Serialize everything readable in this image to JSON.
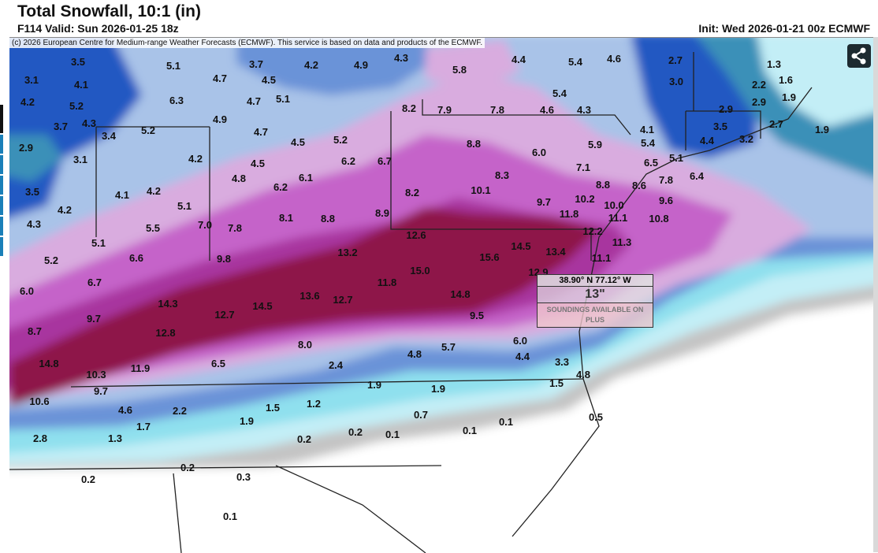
{
  "header": {
    "title": "Total Snowfall, 10:1 (in)",
    "valid": "F114 Valid: Sun 2026-01-25 18z",
    "init": "Init: Wed 2026-01-21 00z ECMWF"
  },
  "map": {
    "copyright": "(c) 2026 European Centre for Medium-range Weather Forecasts (ECMWF). This service is based on data and products of the ECMWF.",
    "share_icon": "share-icon",
    "colors": {
      "crimson": "#8e1449",
      "magenta": "#a8359f",
      "purple": "#c564c9",
      "lavender": "#d9acdf",
      "light_blue": "#a9c3e8",
      "blue": "#6b93d8",
      "dark_blue": "#2458c2",
      "teal": "#3a90b8",
      "cyan": "#8fe0ee",
      "light_cyan": "#c3eef6",
      "gray": "#c4c4c4"
    },
    "labels": [
      "3.5",
      "5.1",
      "3.7",
      "4.2",
      "4.9",
      "4.3",
      "5.8",
      "4.4",
      "5.4",
      "4.6",
      "2.7",
      "1.3",
      "3.1",
      "4.1",
      "4.7",
      "4.5",
      "3.0",
      "2.2",
      "1.6",
      "4.2",
      "5.2",
      "6.3",
      "4.7",
      "5.1",
      "5.4",
      "2.9",
      "1.9",
      "3.7",
      "4.3",
      "4.9",
      "8.2",
      "7.9",
      "7.8",
      "4.6",
      "4.3",
      "2.9",
      "3.4",
      "5.2",
      "4.7",
      "4.1",
      "3.5",
      "2.7",
      "1.9",
      "2.9",
      "4.5",
      "5.2",
      "8.8",
      "5.9",
      "5.4",
      "4.4",
      "3.2",
      "3.1",
      "4.2",
      "4.5",
      "6.2",
      "6.7",
      "6.0",
      "7.1",
      "6.5",
      "5.1",
      "4.8",
      "6.1",
      "8.3",
      "7.8",
      "6.4",
      "3.5",
      "4.1",
      "4.2",
      "6.2",
      "8.2",
      "10.1",
      "8.8",
      "8.6",
      "4.2",
      "5.1",
      "8.1",
      "8.8",
      "8.9",
      "9.7",
      "10.2",
      "10.0",
      "9.6",
      "4.3",
      "5.5",
      "7.0",
      "7.8",
      "11.8",
      "11.1",
      "10.8",
      "5.1",
      "12.6",
      "12.2",
      "11.3",
      "5.2",
      "6.6",
      "9.8",
      "13.2",
      "14.5",
      "15.6",
      "13.4",
      "11.1",
      "6.7",
      "15.0",
      "11.8",
      "12.9",
      "6.0",
      "13.6",
      "12.7",
      "14.8",
      "14.3",
      "14.5",
      "9.7",
      "12.7",
      "9.5",
      "8.7",
      "12.8",
      "8.0",
      "6.0",
      "14.8",
      "6.5",
      "2.4",
      "4.8",
      "5.7",
      "4.4",
      "3.3",
      "4.8",
      "10.3",
      "11.9",
      "9.7",
      "1.9",
      "1.9",
      "1.5",
      "10.6",
      "4.6",
      "2.2",
      "1.5",
      "1.2",
      "0.7",
      "0.5",
      "1.7",
      "1.9",
      "2.8",
      "1.3",
      "0.2",
      "0.2",
      "0.1",
      "0.1",
      "0.1",
      "0.2",
      "0.3",
      "0.2",
      "0.1"
    ]
  },
  "tooltip": {
    "coords": "38.90° N 77.12° W",
    "value": "13\"",
    "note": "SOUNDINGS AVAILABLE ON PLUS"
  }
}
